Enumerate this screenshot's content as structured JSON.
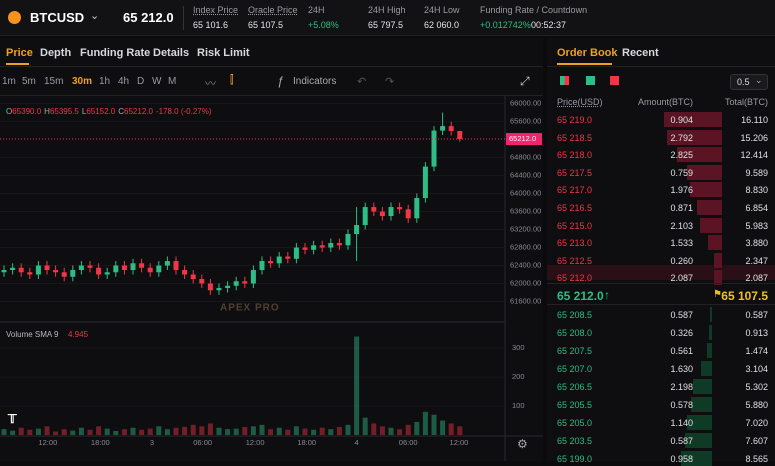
{
  "header": {
    "symbol": "BTCUSD",
    "price": "65 212.0",
    "stats": [
      {
        "label": "Index Price",
        "value": "65 101.6"
      },
      {
        "label": "Oracle Price",
        "value": "65 107.5"
      },
      {
        "label": "24H",
        "value": "+5.08%"
      },
      {
        "label": "24H High",
        "value": "65 797.5"
      },
      {
        "label": "24H Low",
        "value": "62 060.0"
      },
      {
        "label": "Funding Rate / Countdown",
        "value": "+0.012742%",
        "countdown": "00:52:37"
      }
    ]
  },
  "tabs": [
    "Price",
    "Depth",
    "Funding Rate",
    "Details",
    "Risk Limit"
  ],
  "intervals": [
    "1m",
    "5m",
    "15m",
    "30m",
    "1h",
    "4h",
    "D",
    "W",
    "M"
  ],
  "active_interval": "30m",
  "indicators": "Indicators",
  "ohlc_legend": [
    {
      "k": "O",
      "v": "65390.0"
    },
    {
      "k": "H",
      "v": "65395.5"
    },
    {
      "k": "L",
      "v": "65152.0"
    },
    {
      "k": "C",
      "v": "65212.0"
    }
  ],
  "change": "-178.0 (-0.27%)",
  "price_tag": "65212.0",
  "volume_label": "Volume SMA 9",
  "volume_value": "4.945",
  "watermark": "APEX PRO",
  "chart_data": {
    "type": "candlestick",
    "open": [
      62250,
      62300,
      62350,
      62250,
      62200,
      62400,
      62300,
      62250,
      62150,
      62300,
      62400,
      62350,
      62200,
      62250,
      62400,
      62300,
      62450,
      62350,
      62250,
      62400,
      62500,
      62300,
      62200,
      62100,
      62000,
      61850,
      61900,
      61950,
      62050,
      62000,
      62300,
      62500,
      62450,
      62600,
      62550,
      62800,
      62750,
      62850,
      62800,
      62900,
      62850,
      63100,
      63300,
      63700,
      63600,
      63500,
      63700,
      63650,
      63450,
      63900,
      64600,
      65400,
      65500,
      65390
    ],
    "high": [
      62400,
      62450,
      62450,
      62350,
      62500,
      62500,
      62400,
      62350,
      62400,
      62500,
      62500,
      62450,
      62350,
      62500,
      62500,
      62550,
      62550,
      62450,
      62500,
      62600,
      62600,
      62400,
      62300,
      62200,
      62100,
      62000,
      62050,
      62150,
      62150,
      62400,
      62600,
      62600,
      62700,
      62700,
      62900,
      62900,
      62950,
      62950,
      63000,
      63000,
      63200,
      63700,
      63800,
      63800,
      63700,
      63800,
      63800,
      63750,
      64000,
      64700,
      65500,
      65800,
      65600,
      65395.5
    ],
    "low": [
      62150,
      62200,
      62150,
      62100,
      62100,
      62200,
      62150,
      62050,
      62050,
      62200,
      62250,
      62100,
      62100,
      62150,
      62200,
      62200,
      62250,
      62150,
      62150,
      62300,
      62200,
      62100,
      62000,
      61900,
      61750,
      61750,
      61800,
      61850,
      61900,
      61900,
      62200,
      62350,
      62350,
      62450,
      62450,
      62650,
      62650,
      62700,
      62700,
      62750,
      62750,
      62500,
      63200,
      63500,
      63400,
      63400,
      63550,
      63350,
      63350,
      63800,
      64500,
      65300,
      65290,
      65152
    ],
    "close": [
      62300,
      62350,
      62250,
      62200,
      62400,
      62300,
      62250,
      62150,
      62300,
      62400,
      62350,
      62200,
      62250,
      62400,
      62300,
      62450,
      62350,
      62250,
      62400,
      62500,
      62300,
      62200,
      62100,
      62000,
      61850,
      61900,
      61950,
      62050,
      62000,
      62300,
      62500,
      62450,
      62600,
      62550,
      62800,
      62750,
      62850,
      62800,
      62900,
      62850,
      63100,
      63300,
      63700,
      63600,
      63500,
      63700,
      63650,
      63450,
      63900,
      64600,
      65400,
      65500,
      65390,
      65212
    ],
    "volume": [
      20,
      15,
      25,
      18,
      22,
      30,
      12,
      20,
      15,
      25,
      18,
      30,
      22,
      14,
      20,
      25,
      18,
      22,
      30,
      20,
      25,
      28,
      35,
      30,
      40,
      25,
      20,
      22,
      28,
      30,
      35,
      20,
      25,
      18,
      30,
      22,
      18,
      25,
      20,
      28,
      35,
      340,
      60,
      40,
      30,
      25,
      20,
      35,
      45,
      80,
      70,
      50,
      40,
      30
    ],
    "up_color": "#2ebd85",
    "down_color": "#f23645",
    "ylim": [
      61500,
      66080
    ],
    "yticks": [
      {
        "value": 66000,
        "label": "66000.00"
      },
      {
        "value": 65600,
        "label": "65600.00"
      },
      {
        "value": 64800,
        "label": "64800.00"
      },
      {
        "value": 64400,
        "label": "64400.00"
      },
      {
        "value": 64000,
        "label": "64000.00"
      },
      {
        "value": 63600,
        "label": "63600.00"
      },
      {
        "value": 63200,
        "label": "63200.00"
      },
      {
        "value": 62800,
        "label": "62800.00"
      },
      {
        "value": 62400,
        "label": "62400.00"
      },
      {
        "value": 62000,
        "label": "62000.00"
      },
      {
        "value": 61600,
        "label": "61600.00"
      }
    ],
    "current_price": 65212,
    "vol_ylim": [
      0,
      380
    ],
    "vol_yticks": [
      100,
      200,
      300
    ],
    "time_labels": [
      "12:00",
      "18:00",
      "3",
      "06:00",
      "12:00",
      "18:00",
      "4",
      "06:00",
      "12:00"
    ]
  },
  "order_book": {
    "tabs": [
      "Order Book",
      "Recent"
    ],
    "step": "0.5",
    "headers": [
      "Price(USD)",
      "Amount(BTC)",
      "Total(BTC)"
    ],
    "asks": [
      [
        "65 219.0",
        "0.904",
        "16.110"
      ],
      [
        "65 218.5",
        "2.792",
        "15.206"
      ],
      [
        "65 218.0",
        "2.825",
        "12.414"
      ],
      [
        "65 217.5",
        "0.759",
        "9.589"
      ],
      [
        "65 217.0",
        "1.976",
        "8.830"
      ],
      [
        "65 216.5",
        "0.871",
        "6.854"
      ],
      [
        "65 215.0",
        "2.103",
        "5.983"
      ],
      [
        "65 213.0",
        "1.533",
        "3.880"
      ],
      [
        "65 212.5",
        "0.260",
        "2.347"
      ],
      [
        "65 212.0",
        "2.087",
        "2.087"
      ]
    ],
    "last_price": "65 212.0",
    "mark_price": "65 107.5",
    "bids": [
      [
        "65 208.5",
        "0.587",
        "0.587"
      ],
      [
        "65 208.0",
        "0.326",
        "0.913"
      ],
      [
        "65 207.5",
        "0.561",
        "1.474"
      ],
      [
        "65 207.0",
        "1.630",
        "3.104"
      ],
      [
        "65 206.5",
        "2.198",
        "5.302"
      ],
      [
        "65 205.5",
        "0.578",
        "5.880"
      ],
      [
        "65 205.0",
        "1.140",
        "7.020"
      ],
      [
        "65 203.5",
        "0.587",
        "7.607"
      ],
      [
        "65 199.0",
        "0.958",
        "8.565"
      ]
    ]
  }
}
